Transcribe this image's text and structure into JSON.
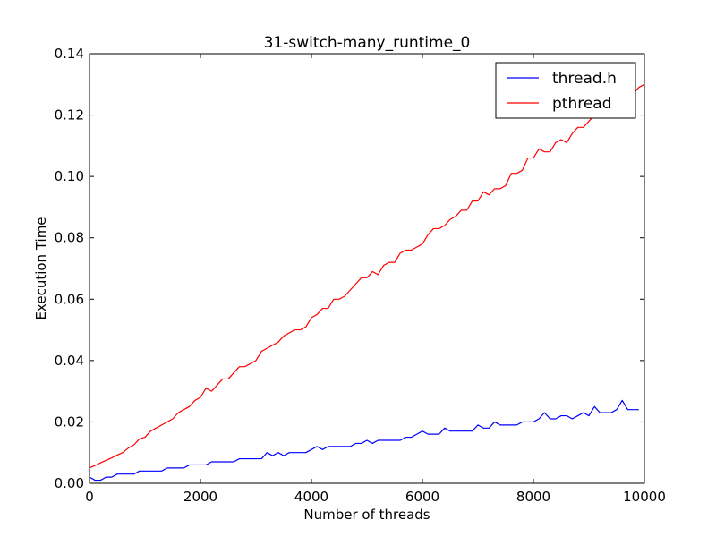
{
  "chart_data": {
    "type": "line",
    "title": "31-switch-many_runtime_0",
    "xlabel": "Number of threads",
    "ylabel": "Execution Time",
    "xlim": [
      0,
      10000
    ],
    "ylim": [
      0,
      0.14
    ],
    "xticks": [
      0,
      2000,
      4000,
      6000,
      8000,
      10000
    ],
    "xtick_labels": [
      "0",
      "2000",
      "4000",
      "6000",
      "8000",
      "10000"
    ],
    "yticks": [
      0,
      0.02,
      0.04,
      0.06,
      0.08,
      0.1,
      0.12,
      0.14
    ],
    "ytick_labels": [
      "0.00",
      "0.02",
      "0.04",
      "0.06",
      "0.08",
      "0.10",
      "0.12",
      "0.14"
    ],
    "grid": false,
    "legend_position": "top-right",
    "x": [
      0,
      100,
      200,
      300,
      400,
      500,
      600,
      700,
      800,
      900,
      1000,
      1100,
      1200,
      1300,
      1400,
      1500,
      1600,
      1700,
      1800,
      1900,
      2000,
      2100,
      2200,
      2300,
      2400,
      2500,
      2600,
      2700,
      2800,
      2900,
      3000,
      3100,
      3200,
      3300,
      3400,
      3500,
      3600,
      3700,
      3800,
      3900,
      4000,
      4100,
      4200,
      4300,
      4400,
      4500,
      4600,
      4700,
      4800,
      4900,
      5000,
      5100,
      5200,
      5300,
      5400,
      5500,
      5600,
      5700,
      5800,
      5900,
      6000,
      6100,
      6200,
      6300,
      6400,
      6500,
      6600,
      6700,
      6800,
      6900,
      7000,
      7100,
      7200,
      7300,
      7400,
      7500,
      7600,
      7700,
      7800,
      7900,
      8000,
      8100,
      8200,
      8300,
      8400,
      8500,
      8600,
      8700,
      8800,
      8900,
      9000,
      9100,
      9200,
      9300,
      9400,
      9500,
      9600,
      9700,
      9800,
      9900,
      10000
    ],
    "series": [
      {
        "name": "thread.h",
        "color": "#0000ff",
        "values": [
          0.002,
          0.001,
          0.001,
          0.002,
          0.002,
          0.003,
          0.003,
          0.003,
          0.003,
          0.004,
          0.004,
          0.004,
          0.004,
          0.004,
          0.005,
          0.005,
          0.005,
          0.005,
          0.006,
          0.006,
          0.006,
          0.006,
          0.007,
          0.007,
          0.007,
          0.007,
          0.007,
          0.008,
          0.008,
          0.008,
          0.008,
          0.008,
          0.01,
          0.009,
          0.01,
          0.009,
          0.01,
          0.01,
          0.01,
          0.01,
          0.011,
          0.012,
          0.011,
          0.012,
          0.012,
          0.012,
          0.012,
          0.012,
          0.013,
          0.013,
          0.014,
          0.013,
          0.014,
          0.014,
          0.014,
          0.014,
          0.014,
          0.015,
          0.015,
          0.016,
          0.017,
          0.016,
          0.016,
          0.016,
          0.018,
          0.017,
          0.017,
          0.017,
          0.017,
          0.017,
          0.019,
          0.018,
          0.018,
          0.02,
          0.019,
          0.019,
          0.019,
          0.019,
          0.02,
          0.02,
          0.02,
          0.021,
          0.023,
          0.021,
          0.021,
          0.022,
          0.022,
          0.021,
          0.022,
          0.023,
          0.022,
          0.025,
          0.023,
          0.023,
          0.023,
          0.024,
          0.027,
          0.024,
          0.024,
          0.024,
          null
        ]
      },
      {
        "name": "pthread",
        "color": "#ff0000",
        "values": [
          0.005,
          0.0058,
          0.0067,
          0.0075,
          0.0083,
          0.0092,
          0.01,
          0.0115,
          0.0125,
          0.0145,
          0.015,
          0.017,
          0.018,
          0.019,
          0.02,
          0.021,
          0.023,
          0.024,
          0.025,
          0.027,
          0.028,
          0.031,
          0.03,
          0.032,
          0.034,
          0.034,
          0.036,
          0.038,
          0.038,
          0.039,
          0.04,
          0.043,
          0.044,
          0.045,
          0.046,
          0.048,
          0.049,
          0.05,
          0.05,
          0.051,
          0.054,
          0.055,
          0.057,
          0.057,
          0.06,
          0.06,
          0.061,
          0.063,
          0.065,
          0.067,
          0.067,
          0.069,
          0.068,
          0.071,
          0.072,
          0.072,
          0.075,
          0.076,
          0.076,
          0.077,
          0.078,
          0.081,
          0.083,
          0.083,
          0.084,
          0.086,
          0.087,
          0.089,
          0.089,
          0.092,
          0.092,
          0.095,
          0.094,
          0.096,
          0.096,
          0.097,
          0.101,
          0.101,
          0.102,
          0.106,
          0.106,
          0.109,
          0.108,
          0.108,
          0.111,
          0.112,
          0.111,
          0.114,
          0.116,
          0.116,
          0.118,
          0.12,
          0.121,
          0.122,
          0.123,
          0.124,
          0.125,
          0.126,
          0.127,
          0.129,
          0.13
        ]
      }
    ]
  }
}
